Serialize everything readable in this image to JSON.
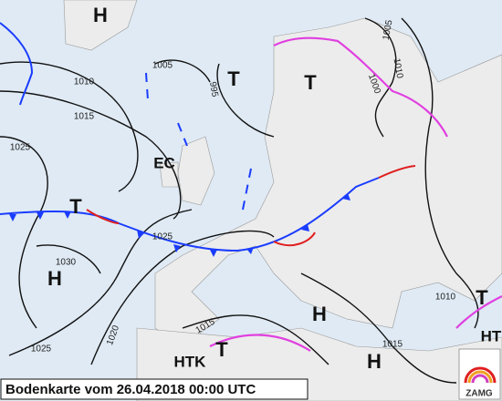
{
  "title": "Bodenkarte vom 26.04.2018 00:00 UTC",
  "logo": "ZAMG",
  "pressure_centers": [
    "H",
    "T",
    "T",
    "EC",
    "T",
    "H",
    "H",
    "H",
    "T",
    "HTK",
    "T",
    "HT"
  ],
  "isobar_labels": [
    "1010",
    "1015",
    "1025",
    "1030",
    "1025",
    "1020",
    "1025",
    "995",
    "1005",
    "1005",
    "1000",
    "1010",
    "1010",
    "1015",
    "1015"
  ]
}
